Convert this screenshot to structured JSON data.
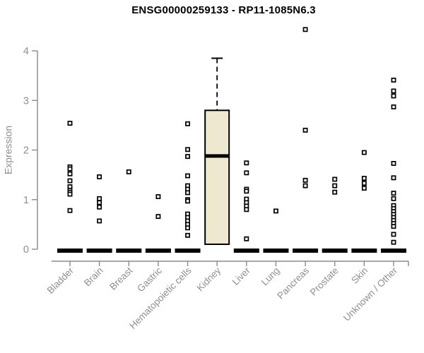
{
  "chart_data": {
    "type": "boxplot",
    "title": "ENSG00000259133 - RP11-1085N6.3",
    "ylabel": "Expression",
    "xlabel": "",
    "ylim": [
      0,
      4
    ],
    "yticks": [
      0,
      1,
      2,
      3,
      4
    ],
    "grid": false,
    "legend": null,
    "categories": [
      "Bladder",
      "Brain",
      "Breast",
      "Gastric",
      "Hematopoietic cells",
      "Kidney",
      "Liver",
      "Lung",
      "Pancreas",
      "Prostate",
      "Skin",
      "Unknown / Other"
    ],
    "series": [
      {
        "category": "Bladder",
        "zero_bar": true,
        "box": null,
        "points": [
          2.54,
          1.66,
          1.62,
          1.52,
          1.38,
          1.26,
          1.19,
          1.15,
          1.11,
          0.78
        ]
      },
      {
        "category": "Brain",
        "zero_bar": true,
        "box": null,
        "points": [
          1.46,
          1.02,
          0.94,
          0.85,
          0.57
        ]
      },
      {
        "category": "Breast",
        "zero_bar": true,
        "box": null,
        "points": [
          1.56
        ]
      },
      {
        "category": "Gastric",
        "zero_bar": true,
        "box": null,
        "points": [
          1.06,
          0.66
        ]
      },
      {
        "category": "Hematopoietic cells",
        "zero_bar": true,
        "box": null,
        "points": [
          2.53,
          2.01,
          1.87,
          1.48,
          1.28,
          1.21,
          1.14,
          1.0,
          0.97,
          0.71,
          0.64,
          0.57,
          0.5,
          0.43,
          0.28
        ]
      },
      {
        "category": "Kidney",
        "zero_bar": false,
        "box": {
          "q1": 0.1,
          "median": 1.88,
          "q3": 2.8,
          "whisker_high": 3.85,
          "whisker_low": null
        },
        "points": []
      },
      {
        "category": "Liver",
        "zero_bar": true,
        "box": null,
        "points": [
          1.74,
          1.54,
          1.21,
          1.17,
          1.01,
          0.94,
          0.87,
          0.8,
          0.21
        ]
      },
      {
        "category": "Lung",
        "zero_bar": true,
        "box": null,
        "points": [
          0.77
        ]
      },
      {
        "category": "Pancreas",
        "zero_bar": true,
        "box": null,
        "points": [
          4.43,
          2.4,
          1.39,
          1.28
        ]
      },
      {
        "category": "Prostate",
        "zero_bar": true,
        "box": null,
        "points": [
          1.41,
          1.28,
          1.15
        ]
      },
      {
        "category": "Skin",
        "zero_bar": true,
        "box": null,
        "points": [
          1.95,
          1.43,
          1.33,
          1.23
        ]
      },
      {
        "category": "Unknown / Other",
        "zero_bar": true,
        "box": null,
        "points": [
          3.41,
          3.19,
          3.09,
          2.87,
          1.73,
          1.44,
          1.13,
          1.02,
          0.88,
          0.82,
          0.76,
          0.7,
          0.64,
          0.58,
          0.52,
          0.46,
          0.3,
          0.14
        ]
      }
    ],
    "colors": {
      "title": "#000000",
      "axis": "#8a8a8a",
      "tick_label": "#8f8f8f",
      "zero_bar": "#000000",
      "box_fill": "#EDE8CF",
      "box_border": "#000000",
      "median": "#000000",
      "whisker": "#000000",
      "point_stroke": "#000000",
      "point_fill": "#ffffff",
      "background": "#ffffff"
    }
  }
}
